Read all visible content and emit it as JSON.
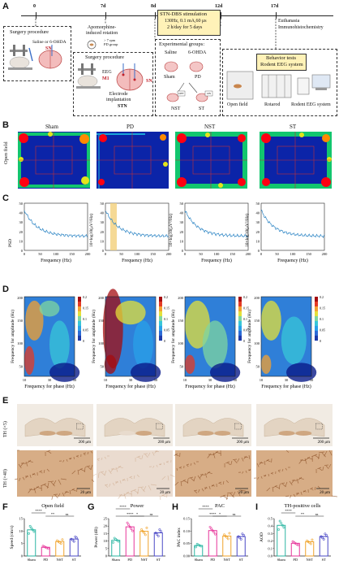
{
  "panels": {
    "A": "A",
    "B": "B",
    "C": "C",
    "D": "D",
    "E": "E",
    "F": "F",
    "G": "G",
    "H": "H",
    "I": "I"
  },
  "timeline": {
    "days": [
      "0",
      "7d",
      "8d",
      "12d",
      "17d"
    ],
    "surgery_procedure": "Surgery procedure",
    "saline_6ohda": "Saline or 6-OHDA",
    "sn": "SN",
    "apomorphine": "Apomorphine-\ninduced rotation",
    "rpm": "> 7 rpm\nPD group",
    "surgery_procedure2": "Surgery procedure",
    "eeg": "EEG",
    "m1": "M1",
    "sn2": "SN",
    "electrode": "Electrode\nimplantation",
    "stn": "STN",
    "stim_title": "STN-DBS stimulation",
    "stim_params": "130Hz, 0.1 mA,60 μs",
    "stim_days": "2 h/day for 5 days",
    "euthanasia": "Euthanasia",
    "immuno": "Immunohistochemistry",
    "exp_groups": "Experimental groups:",
    "saline": "Saline",
    "ohda": "6-OHDA",
    "sham": "Sham",
    "pd": "PD",
    "off": "OFF",
    "on": "ON",
    "nst": "NST",
    "st": "ST",
    "behavior1": "Behavior tests",
    "behavior2": "Rodent EEG system",
    "open_field": "Open field",
    "rotarod": "Rotarod",
    "rodent_eeg": "Rodent EEG system"
  },
  "groups": [
    "Sham",
    "PD",
    "NST",
    "ST"
  ],
  "row_labels": {
    "B": "Open field",
    "C": "PSD",
    "E1": "TH (×5)",
    "E2": "TH (×40)"
  },
  "psd": {
    "xlabel": "Frequency (Hz)",
    "ylabel": "10×log10(μV²/Hz)",
    "xticks": [
      "0",
      "50",
      "100",
      "150",
      "200"
    ],
    "yticks": [
      "50",
      "40",
      "30",
      "20",
      "10",
      "0"
    ]
  },
  "pac": {
    "xlabel": "Frequency for phase (Hz)",
    "ylabel": "Frequency for amplitude (Hz)",
    "xticks": [
      "10",
      "30",
      "50"
    ],
    "yticks": [
      "200",
      "150",
      "100",
      "50"
    ],
    "cbar": [
      "0.2",
      "0.15",
      "0.1",
      "0.05",
      "0"
    ]
  },
  "scale": {
    "s200": "200 μm",
    "s20": "20 μm"
  },
  "bottom_charts": [
    {
      "title": "Open field",
      "ylabel": "Speed (cm/s)",
      "ylim": [
        0,
        15
      ],
      "yticks": [
        "15",
        "10",
        "5",
        "0"
      ],
      "categories": [
        "Sham",
        "PD",
        "NST",
        "ST"
      ],
      "values": [
        10.5,
        3.5,
        5.8,
        6.8
      ],
      "sig": [
        {
          "text": "****"
        },
        {
          "text": "**"
        },
        {
          "text": "ns"
        }
      ]
    },
    {
      "title": "Power",
      "ylabel": "Power (dB)",
      "ylim": [
        0,
        25
      ],
      "yticks": [
        "25",
        "20",
        "15",
        "10",
        "5",
        "0"
      ],
      "categories": [
        "Sham",
        "PD",
        "NST",
        "ST"
      ],
      "values": [
        10.5,
        19.5,
        16.5,
        15.5
      ],
      "sig": [
        {
          "text": "****"
        },
        {
          "text": "****"
        },
        {
          "text": "*"
        },
        {
          "text": "ns"
        }
      ]
    },
    {
      "title": "PAC",
      "ylabel": "PAC index",
      "ylim": [
        0,
        0.15
      ],
      "yticks": [
        "0.15",
        "0.10",
        "0.05",
        "0.00"
      ],
      "categories": [
        "Sham",
        "PD",
        "NST",
        "ST"
      ],
      "values": [
        0.042,
        0.102,
        0.08,
        0.078
      ],
      "sig": [
        {
          "text": "****"
        },
        {
          "text": "****"
        },
        {
          "text": "*"
        },
        {
          "text": "ns"
        }
      ]
    },
    {
      "title": "TH-positive cells",
      "ylabel": "AOD",
      "ylim": [
        0,
        0.5
      ],
      "yticks": [
        "0.5",
        "0.4",
        "0.3",
        "0.2",
        "0.1",
        "0.0"
      ],
      "categories": [
        "Sham",
        "PD",
        "NST",
        "ST"
      ],
      "values": [
        0.41,
        0.17,
        0.19,
        0.26
      ],
      "sig": [
        {
          "text": "****"
        },
        {
          "text": "**"
        },
        {
          "text": "ns"
        }
      ]
    }
  ],
  "colors": {
    "sham": "#2ab6a2",
    "pd": "#e7359a",
    "nst": "#f0a32a",
    "st": "#4a48c6",
    "psd": "#2b84c4",
    "panelbg": "#fff7c9"
  }
}
